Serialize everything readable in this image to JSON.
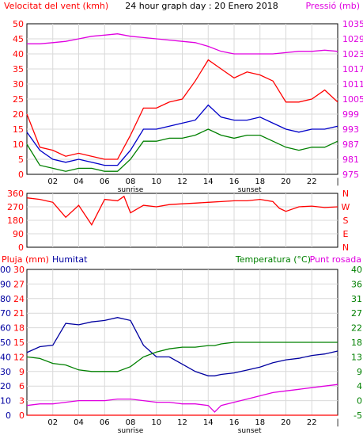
{
  "colors": {
    "wind_speed": "#ff0000",
    "wind_avg": "#0000c8",
    "wind_min": "#008000",
    "pressure": "#e000e0",
    "humidity": "#0000a0",
    "temperature": "#008000",
    "dewpoint": "#e000e0",
    "rain": "#ff0000",
    "grid": "#d9d9d9",
    "frame": "#000000"
  },
  "chart_data": [
    {
      "type": "line",
      "title": "24 hour graph day : 20 Enero 2018",
      "left_label": "Velocitat del vent (kmh)",
      "right_label": "Pressió (mb)",
      "left_ticks": [
        "0",
        "5",
        "10",
        "15",
        "20",
        "25",
        "30",
        "35",
        "40",
        "45",
        "50"
      ],
      "right_ticks": [
        "975",
        "981",
        "987",
        "993",
        "999",
        "1005",
        "1011",
        "1017",
        "1023",
        "1029",
        "1035"
      ],
      "x_ticks": [
        "02",
        "04",
        "06",
        "08",
        "10",
        "12",
        "14",
        "16",
        "18",
        "20",
        "22"
      ],
      "sunrise_label": "sunrise",
      "sunset_label": "sunset",
      "ylim": [
        0,
        50
      ],
      "ylim_right": [
        975,
        1035
      ],
      "x": [
        0,
        1,
        2,
        3,
        4,
        5,
        6,
        7,
        8,
        9,
        10,
        11,
        12,
        13,
        14,
        15,
        16,
        17,
        18,
        19,
        20,
        21,
        22,
        23,
        24
      ],
      "series": [
        {
          "key": "wind_speed",
          "axis": "left",
          "values": [
            20,
            9,
            8,
            6,
            7,
            6,
            5,
            5,
            13,
            22,
            22,
            24,
            25,
            31,
            38,
            35,
            32,
            34,
            33,
            31,
            24,
            24,
            25,
            28,
            24
          ]
        },
        {
          "key": "wind_avg",
          "axis": "left",
          "values": [
            14,
            8,
            5,
            4,
            5,
            4,
            3,
            3,
            8,
            15,
            15,
            16,
            17,
            18,
            23,
            19,
            18,
            18,
            19,
            17,
            15,
            14,
            15,
            15,
            16
          ]
        },
        {
          "key": "wind_min",
          "axis": "left",
          "values": [
            10,
            3,
            2,
            1,
            2,
            2,
            1,
            1,
            5,
            11,
            11,
            12,
            12,
            13,
            15,
            13,
            12,
            13,
            13,
            11,
            9,
            8,
            9,
            9,
            11
          ]
        },
        {
          "key": "pressure",
          "axis": "right",
          "values": [
            1027,
            1027,
            1027.5,
            1028,
            1029,
            1030,
            1030.5,
            1031,
            1030,
            1029.5,
            1029,
            1028.5,
            1028,
            1027.5,
            1026,
            1024,
            1023,
            1023,
            1023,
            1023,
            1023.5,
            1024,
            1024,
            1024.5,
            1024
          ]
        }
      ]
    },
    {
      "type": "scatter",
      "left_ticks": [
        "0",
        "90",
        "180",
        "270",
        "360"
      ],
      "right_ticks": [
        "N",
        "E",
        "S",
        "W",
        "N"
      ],
      "ylim": [
        0,
        360
      ],
      "x": [
        0,
        1,
        2,
        3,
        4,
        5,
        6,
        7,
        7.5,
        8,
        9,
        10,
        11,
        12,
        13,
        14,
        15,
        16,
        17,
        18,
        19,
        19.5,
        20,
        21,
        22,
        23,
        24
      ],
      "series": [
        {
          "key": "wind_speed",
          "name": "direction",
          "values": [
            330,
            320,
            300,
            200,
            280,
            150,
            320,
            310,
            340,
            230,
            280,
            270,
            285,
            290,
            295,
            300,
            305,
            310,
            310,
            320,
            305,
            260,
            240,
            270,
            275,
            265,
            270
          ]
        }
      ]
    },
    {
      "type": "line",
      "left_labels": {
        "rain": "Pluja (mm)",
        "humidity": "Humitat"
      },
      "right_labels": {
        "temperature": "Temperatura (°C)",
        "dewpoint": "Punt rosada"
      },
      "rain_ticks": [
        "0",
        "3",
        "6",
        "9",
        "12",
        "15",
        "18",
        "21",
        "24",
        "27",
        "30"
      ],
      "humidity_ticks": [
        "0",
        "10",
        "20",
        "30",
        "40",
        "50",
        "60",
        "70",
        "80",
        "90",
        "100"
      ],
      "temperature_ticks": [
        "-5",
        "0",
        "4",
        "9",
        "13",
        "18",
        "22",
        "27",
        "31",
        "36",
        "40"
      ],
      "x_ticks": [
        "02",
        "04",
        "06",
        "08",
        "10",
        "12",
        "14",
        "16",
        "18",
        "20",
        "22"
      ],
      "sunrise_label": "sunrise",
      "sunset_label": "sunset",
      "ylim_humidity": [
        0,
        100
      ],
      "ylim_temperature": [
        -5,
        40
      ],
      "ylim_rain": [
        0,
        30
      ],
      "x": [
        0,
        1,
        2,
        3,
        4,
        5,
        6,
        7,
        8,
        9,
        10,
        11,
        12,
        13,
        14,
        14.5,
        15,
        16,
        17,
        18,
        19,
        20,
        21,
        22,
        23,
        24
      ],
      "series": [
        {
          "key": "humidity",
          "axis": "humidity",
          "values": [
            43,
            47,
            48,
            63,
            62,
            64,
            65,
            67,
            65,
            48,
            40,
            40,
            35,
            30,
            27,
            27,
            28,
            29,
            31,
            33,
            36,
            38,
            39,
            41,
            42,
            44
          ]
        },
        {
          "key": "temperature",
          "axis": "temperature",
          "values": [
            13,
            12.5,
            11,
            10.5,
            9,
            8.5,
            8.5,
            8.5,
            10,
            13,
            14.5,
            15.5,
            16,
            16,
            16.5,
            16.5,
            17,
            17.5,
            17.5,
            17.5,
            17.5,
            17.5,
            17.5,
            17.5,
            17.5,
            17.5
          ]
        },
        {
          "key": "dewpoint",
          "axis": "temperature",
          "values": [
            -2,
            -1.5,
            -1.5,
            -1,
            -0.5,
            -0.5,
            -0.5,
            0,
            0,
            -0.5,
            -1,
            -1,
            -1.5,
            -1.5,
            -2,
            -4,
            -2,
            -1,
            0,
            1,
            2,
            2.5,
            3,
            3.5,
            4,
            4.5
          ]
        },
        {
          "key": "rain",
          "axis": "rain",
          "values": [
            0,
            0,
            0,
            0,
            0,
            0,
            0,
            0,
            0,
            0,
            0,
            0,
            0,
            0,
            0,
            0,
            0,
            0,
            0,
            0,
            0,
            0,
            0,
            0,
            0,
            0
          ]
        }
      ]
    }
  ]
}
